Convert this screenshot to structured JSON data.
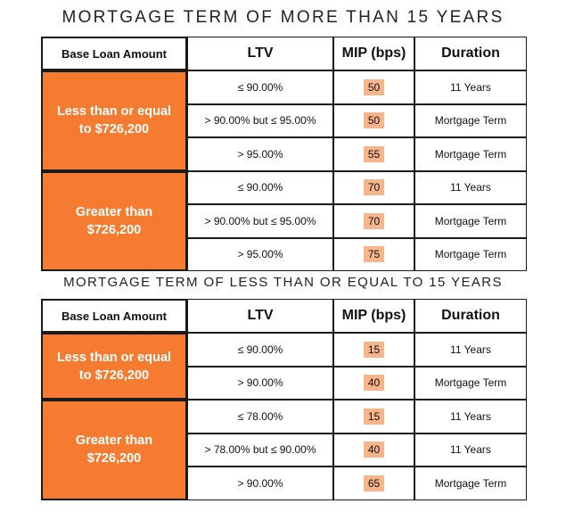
{
  "colors": {
    "accent_orange": "#f47b2f",
    "mip_highlight": "#f8b48a",
    "border": "#1a1a1a"
  },
  "tables": [
    {
      "title": "MORTGAGE TERM OF MORE THAN 15 YEARS",
      "headers": {
        "base": "Base Loan Amount",
        "ltv": "LTV",
        "mip": "MIP (bps)",
        "duration": "Duration"
      },
      "groups": [
        {
          "label": "Less than or equal to $726,200",
          "rows": [
            {
              "ltv": "≤ 90.00%",
              "mip": "50",
              "duration": "11 Years"
            },
            {
              "ltv": "> 90.00% but ≤ 95.00%",
              "mip": "50",
              "duration": "Mortgage Term"
            },
            {
              "ltv": "> 95.00%",
              "mip": "55",
              "duration": "Mortgage Term"
            }
          ]
        },
        {
          "label": "Greater than $726,200",
          "rows": [
            {
              "ltv": "≤ 90.00%",
              "mip": "70",
              "duration": "11 Years"
            },
            {
              "ltv": "> 90.00% but ≤ 95.00%",
              "mip": "70",
              "duration": "Mortgage Term"
            },
            {
              "ltv": "> 95.00%",
              "mip": "75",
              "duration": "Mortgage Term"
            }
          ]
        }
      ]
    },
    {
      "title": "MORTGAGE TERM OF LESS THAN OR EQUAL TO 15 YEARS",
      "headers": {
        "base": "Base Loan Amount",
        "ltv": "LTV",
        "mip": "MIP (bps)",
        "duration": "Duration"
      },
      "groups": [
        {
          "label": "Less than or equal to $726,200",
          "rows": [
            {
              "ltv": "≤ 90.00%",
              "mip": "15",
              "duration": "11 Years"
            },
            {
              "ltv": "> 90.00%",
              "mip": "40",
              "duration": "Mortgage Term"
            }
          ]
        },
        {
          "label": "Greater than $726,200",
          "rows": [
            {
              "ltv": "≤ 78.00%",
              "mip": "15",
              "duration": "11 Years"
            },
            {
              "ltv": "> 78.00% but ≤ 90.00%",
              "mip": "40",
              "duration": "11 Years"
            },
            {
              "ltv": "> 90.00%",
              "mip": "65",
              "duration": "Mortgage Term"
            }
          ]
        }
      ]
    }
  ]
}
